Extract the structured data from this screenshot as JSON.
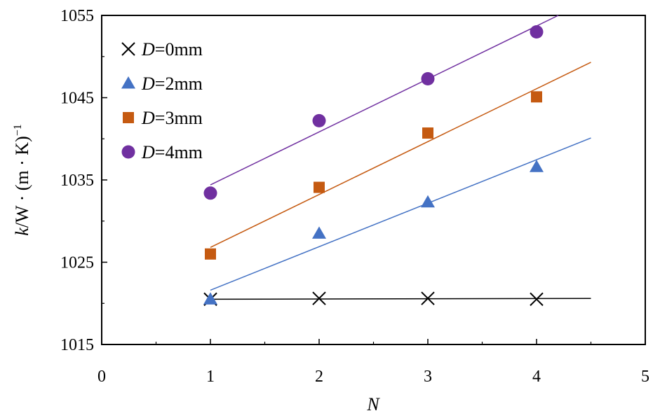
{
  "chart_data": {
    "type": "scatter",
    "xlabel": "N",
    "ylabel": {
      "var": "k",
      "unit": "/W · (m · K)",
      "exp": "−1"
    },
    "xlim": [
      0,
      5
    ],
    "ylim": [
      1015,
      1055
    ],
    "x_ticks": [
      "0",
      "1",
      "2",
      "3",
      "4",
      "5"
    ],
    "y_ticks": [
      "1015",
      "1025",
      "1035",
      "1045",
      "1055"
    ],
    "x": [
      1,
      2,
      3,
      4
    ],
    "legend_position": "top-left",
    "grid": false,
    "series": [
      {
        "name": "D=0mm",
        "label_var": "D",
        "label_rest": "=0mm",
        "marker": "x",
        "color": "#000000",
        "line_color": "#000000",
        "values": [
          1020.5,
          1020.6,
          1020.6,
          1020.5
        ],
        "fit": {
          "x": [
            1,
            4.5
          ],
          "y": [
            1020.5,
            1020.6
          ]
        }
      },
      {
        "name": "D=2mm",
        "label_var": "D",
        "label_rest": "=2mm",
        "marker": "triangle",
        "color": "#4472C4",
        "line_color": "#4472C4",
        "values": [
          1020.5,
          1028.5,
          1032.3,
          1036.6
        ],
        "fit": {
          "x": [
            1,
            4.5
          ],
          "y": [
            1021.6,
            1040.1
          ]
        }
      },
      {
        "name": "D=3mm",
        "label_var": "D",
        "label_rest": "=3mm",
        "marker": "square",
        "color": "#C55A11",
        "line_color": "#C55A11",
        "values": [
          1026.0,
          1034.1,
          1040.7,
          1045.1
        ],
        "fit": {
          "x": [
            1,
            4.5
          ],
          "y": [
            1026.8,
            1049.3
          ]
        }
      },
      {
        "name": "D=4mm",
        "label_var": "D",
        "label_rest": "=4mm",
        "marker": "circle",
        "color": "#7030A0",
        "line_color": "#7030A0",
        "values": [
          1033.4,
          1042.2,
          1047.3,
          1053.0
        ],
        "fit": {
          "x": [
            1,
            4.2
          ],
          "y": [
            1034.4,
            1055.0
          ]
        }
      }
    ]
  }
}
